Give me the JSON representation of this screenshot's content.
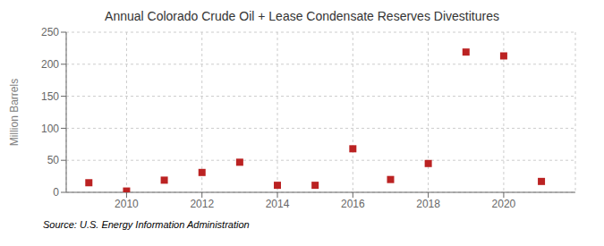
{
  "chart_data": {
    "type": "scatter",
    "title": "Annual Colorado Crude Oil + Lease Condensate Reserves Divestitures",
    "y_label": "Million Barrels",
    "annotations": [
      "Source: U.S. Energy Information Administration"
    ],
    "x": [
      2009,
      2010,
      2011,
      2012,
      2013,
      2014,
      2015,
      2016,
      2017,
      2018,
      2019,
      2020,
      2021
    ],
    "values": [
      15,
      2,
      19,
      31,
      47,
      11,
      11,
      68,
      20,
      45,
      219,
      213,
      17
    ],
    "color": "#bb2222",
    "marker": "square",
    "xlim": [
      2008.4,
      2021.9
    ],
    "xticks": [
      2010,
      2012,
      2014,
      2016,
      2018,
      2020
    ],
    "ylim": [
      0,
      250
    ],
    "yticks": [
      0,
      50,
      100,
      150,
      200,
      250
    ],
    "grid": true
  }
}
